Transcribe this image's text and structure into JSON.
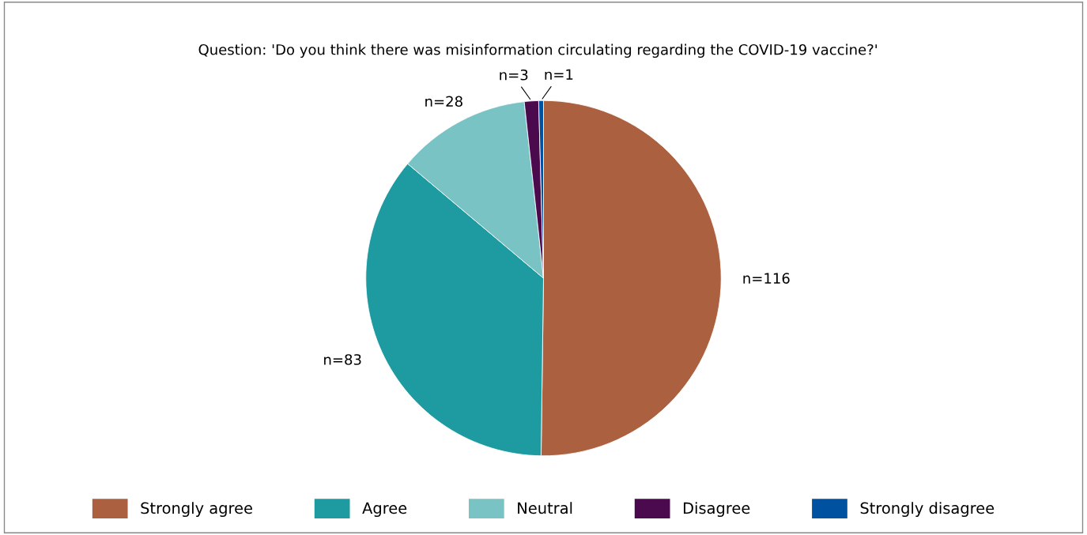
{
  "chart_data": {
    "type": "pie",
    "title": "Question: 'Do you think there was misinformation circulating regarding the COVID-19 vaccine?'",
    "categories": [
      "Strongly agree",
      "Agree",
      "Neutral",
      "Disagree",
      "Strongly disagree"
    ],
    "values": [
      116,
      83,
      28,
      3,
      1
    ],
    "colors": [
      "#ab6140",
      "#1e9ba1",
      "#79c3c4",
      "#4b0a4e",
      "#0051a0"
    ],
    "value_labels": [
      "n=116",
      "n=83",
      "n=28",
      "n=3",
      "n=1"
    ],
    "legend": "bottom"
  }
}
